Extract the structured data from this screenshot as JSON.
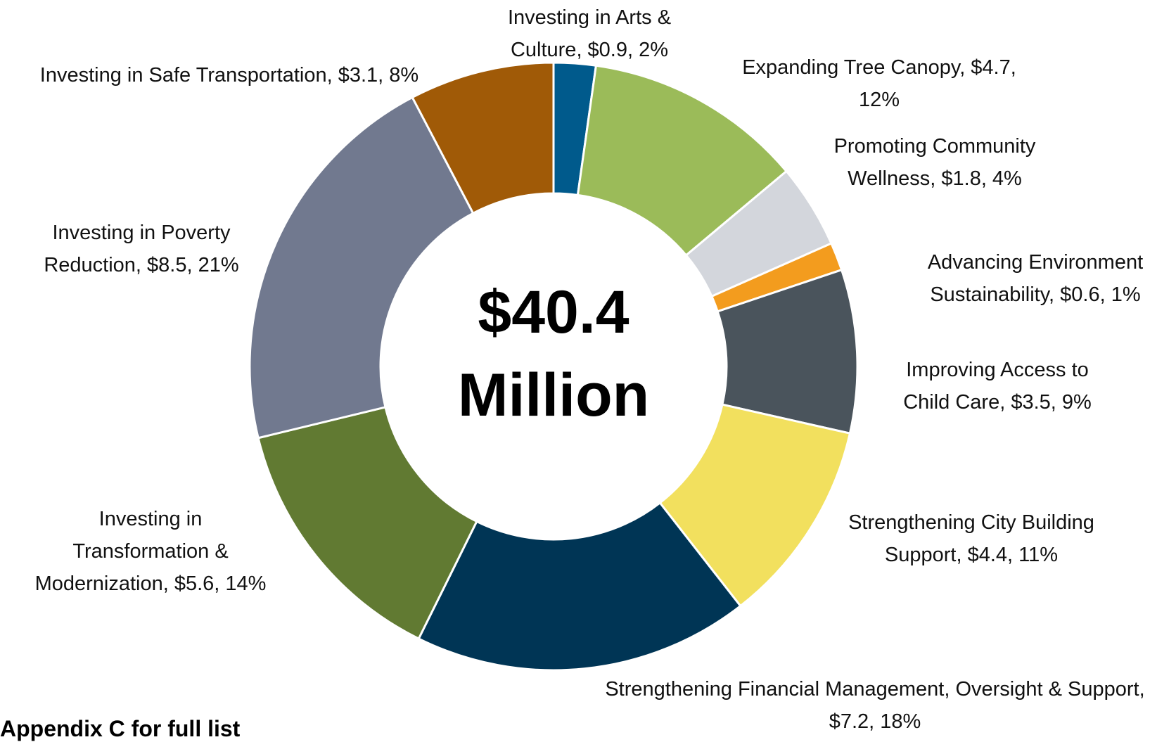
{
  "chart_data": {
    "type": "donut",
    "center_label": "$40.4 Million",
    "categories": [
      "Investing in Arts & Culture, $0.9, 2%",
      "Expanding Tree Canopy, $4.7, 12%",
      "Promoting Community Wellness, $1.8, 4%",
      "Advancing Environment Sustainability, $0.6, 1%",
      "Improving Access to Child Care, $3.5, 9%",
      "Strengthening City Building Support, $4.4, 11%",
      "Strengthening Financial Management, Oversight & Support, $7.2, 18%",
      "Investing in Transformation & Modernization, $5.6, 14%",
      "Investing in Poverty Reduction, $8.5, 21%",
      "Investing in Safe Transportation, $3.1, 8%"
    ],
    "values": [
      0.9,
      4.7,
      1.8,
      0.6,
      3.5,
      4.4,
      7.2,
      5.6,
      8.5,
      3.1
    ],
    "colors": [
      "#005a8c",
      "#9bbb59",
      "#d3d6dc",
      "#f39c1e",
      "#4a545c",
      "#f2e05e",
      "#003555",
      "#617a32",
      "#71798f",
      "#a05a07"
    ],
    "note": "Appendix C for full list"
  }
}
